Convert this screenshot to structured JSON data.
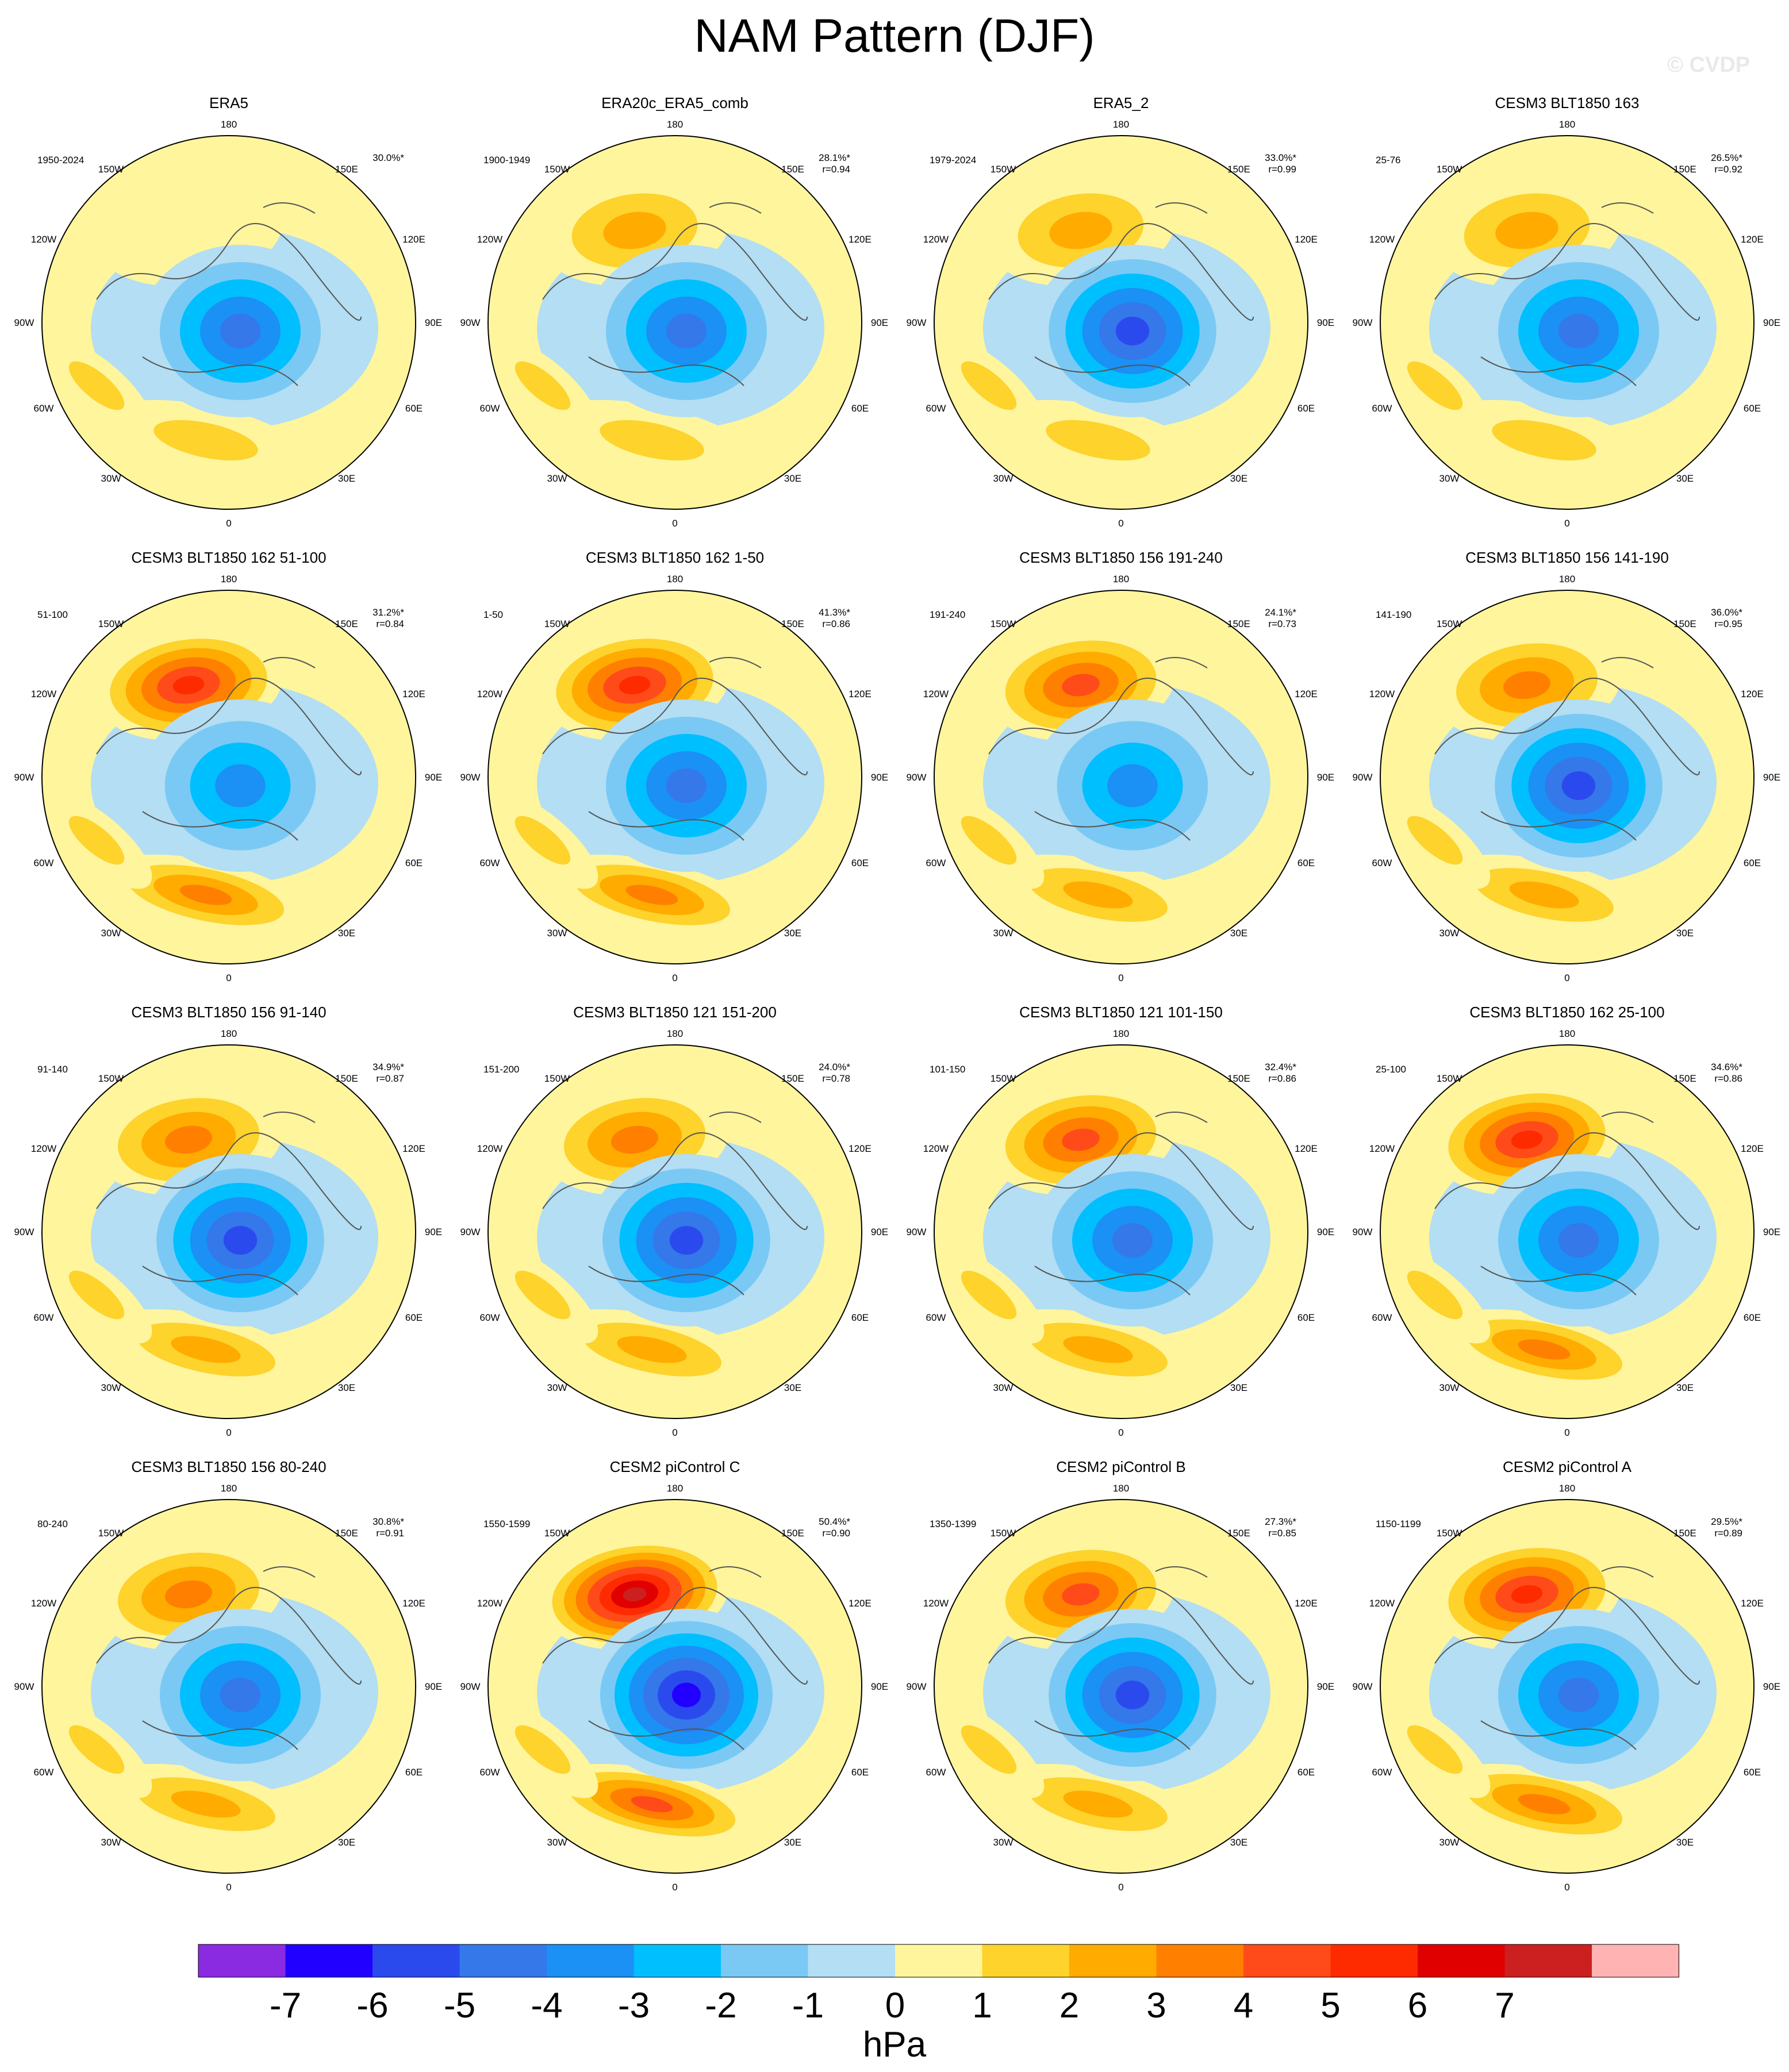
{
  "title": "NAM Pattern (DJF)",
  "watermark": "© CVDP",
  "longitude_labels": {
    "top": "180",
    "bottom": "0",
    "upper_left": "150W",
    "upper_right": "150E",
    "mid_left": "120W",
    "mid_right": "120E",
    "left": "90W",
    "right": "90E",
    "lower_left": "60W",
    "lower_right": "60E",
    "bottom_left": "30W",
    "bottom_right": "30E"
  },
  "panels": [
    {
      "title": "ERA5",
      "years": "1950-2024",
      "pct": "30.0%*",
      "r": "",
      "pos": [
        -0.45,
        0.0
      ],
      "neg": [
        -4.6,
        0.0
      ]
    },
    {
      "title": "ERA20c_ERA5_comb",
      "years": "1900-1949",
      "pct": "28.1%*",
      "r": "r=0.94",
      "pos": [
        -0.45,
        2.5
      ],
      "neg": [
        -4.6,
        2.4
      ]
    },
    {
      "title": "ERA5_2",
      "years": "1979-2024",
      "pct": "33.0%*",
      "r": "r=0.99",
      "pos": [
        -0.45,
        2.6
      ],
      "neg": [
        -5.3,
        2.6
      ]
    },
    {
      "title": "CESM3 BLT1850 163",
      "years": "25-76",
      "pct": "26.5%*",
      "r": "r=0.92",
      "pos": [
        -0.45,
        3.0
      ],
      "neg": [
        -4.6,
        0.0
      ]
    },
    {
      "title": "CESM3 BLT1850 162 51-100",
      "years": "51-100",
      "pct": "31.2%*",
      "r": "r=0.84",
      "pos": [
        -0.45,
        5.3
      ],
      "neg": [
        -3.6,
        0.0
      ]
    },
    {
      "title": "CESM3 BLT1850 162 1-50",
      "years": "1-50",
      "pct": "41.3%*",
      "r": "r=0.86",
      "pos": [
        -0.45,
        5.6
      ],
      "neg": [
        -4.8,
        0.0
      ]
    },
    {
      "title": "CESM3 BLT1850 156 191-240",
      "years": "191-240",
      "pct": "24.1%*",
      "r": "r=0.73",
      "pos": [
        -0.45,
        4.6
      ],
      "neg": [
        -3.4,
        1.0
      ]
    },
    {
      "title": "CESM3 BLT1850 156 141-190",
      "years": "141-190",
      "pct": "36.0%*",
      "r": "r=0.95",
      "pos": [
        -0.45,
        3.6
      ],
      "neg": [
        -5.1,
        2.0
      ]
    },
    {
      "title": "CESM3 BLT1850 156 91-140",
      "years": "91-140",
      "pct": "34.9%*",
      "r": "r=0.87",
      "pos": [
        -0.45,
        3.6
      ],
      "neg": [
        -5.1,
        1.6
      ]
    },
    {
      "title": "CESM3 BLT1850 121 151-200",
      "years": "151-200",
      "pct": "24.0%*",
      "r": "r=0.78",
      "pos": [
        -0.45,
        3.6
      ],
      "neg": [
        -5.1,
        1.6
      ]
    },
    {
      "title": "CESM3 BLT1850 121 101-150",
      "years": "101-150",
      "pct": "32.4%*",
      "r": "r=0.86",
      "pos": [
        -0.45,
        4.3
      ],
      "neg": [
        -4.6,
        0.0
      ]
    },
    {
      "title": "CESM3 BLT1850 162 25-100",
      "years": "25-100",
      "pct": "34.6%*",
      "r": "r=0.86",
      "pos": [
        -0.45,
        5.3
      ],
      "neg": [
        -4.6,
        1.6
      ]
    },
    {
      "title": "CESM3 BLT1850 156 80-240",
      "years": "80-240",
      "pct": "30.8%*",
      "r": "r=0.91",
      "pos": [
        -0.45,
        3.6
      ],
      "neg": [
        -4.6,
        0.0
      ]
    },
    {
      "title": "CESM2 piControl C",
      "years": "1550-1599",
      "pct": "50.4%*",
      "r": "r=0.90",
      "pos": [
        -0.45,
        7.2
      ],
      "neg": [
        -6.4,
        0.0
      ]
    },
    {
      "title": "CESM2 piControl B",
      "years": "1350-1399",
      "pct": "27.3%*",
      "r": "r=0.85",
      "pos": [
        -0.45,
        4.6
      ],
      "neg": [
        -5.1,
        0.0
      ]
    },
    {
      "title": "CESM2 piControl A",
      "years": "1150-1199",
      "pct": "29.5%*",
      "r": "r=0.89",
      "pos": [
        -0.45,
        5.3
      ],
      "neg": [
        -4.6,
        0.0
      ]
    }
  ],
  "colorbar": {
    "colors": [
      "#8a2be2",
      "#2200ff",
      "#2b4aee",
      "#3478ea",
      "#1b90f5",
      "#00bfff",
      "#7ac9f5",
      "#b3def3",
      "#fff59d",
      "#fdd32c",
      "#ffab00",
      "#ff7f00",
      "#ff4b1a",
      "#ff2b00",
      "#e00000",
      "#cc2020",
      "#ffb3b3"
    ],
    "labels": [
      "-7",
      "-6",
      "-5",
      "-4",
      "-3",
      "-2",
      "-1",
      "0",
      "1",
      "2",
      "3",
      "4",
      "5",
      "6",
      "7"
    ],
    "units": "hPa"
  }
}
